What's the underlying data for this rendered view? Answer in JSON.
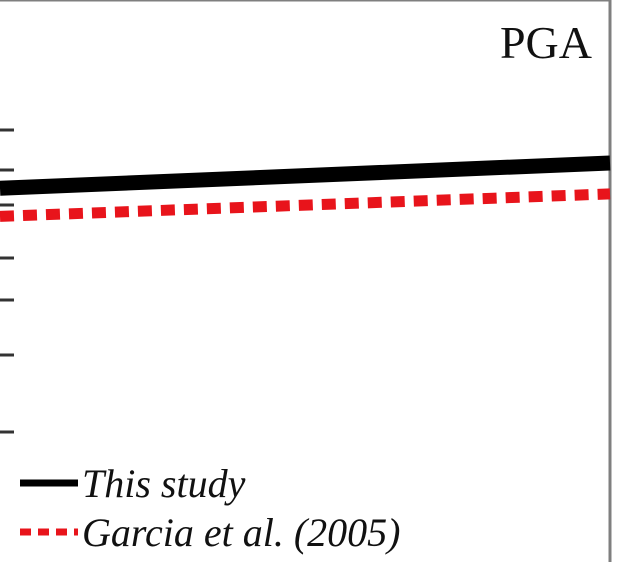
{
  "chart_data": {
    "type": "line",
    "title": "PGA",
    "xlabel": "",
    "ylabel": "",
    "xlim": [
      0,
      1
    ],
    "ylim": [
      0,
      1
    ],
    "grid": false,
    "legend_position": "bottom-left",
    "x": [
      0,
      1
    ],
    "series": [
      {
        "name": "This study",
        "values": [
          0.665,
          0.71
        ],
        "color": "#000000",
        "style": "solid"
      },
      {
        "name": "Garcia et al. (2005)",
        "values": [
          0.615,
          0.655
        ],
        "color": "#e8141b",
        "style": "dashed"
      }
    ]
  }
}
